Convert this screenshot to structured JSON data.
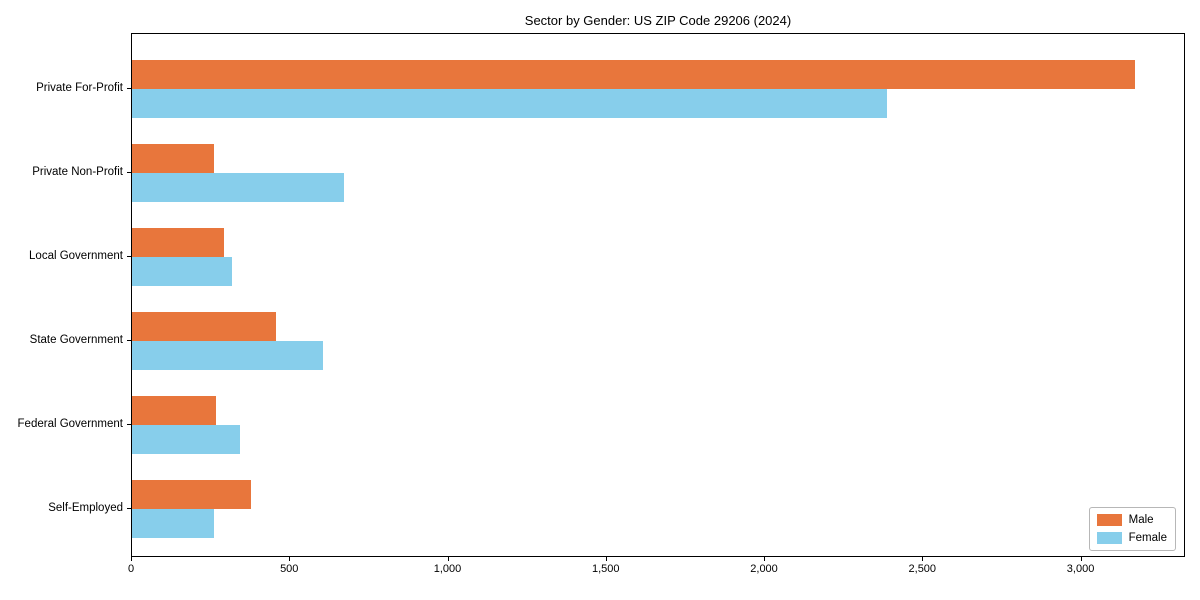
{
  "chart_data": {
    "type": "bar",
    "orientation": "horizontal",
    "title": "Sector by Gender: US ZIP Code 29206 (2024)",
    "categories": [
      "Private For-Profit",
      "Private Non-Profit",
      "Local Government",
      "State Government",
      "Federal Government",
      "Self-Employed"
    ],
    "series": [
      {
        "name": "Male",
        "color": "#e8763c",
        "values": [
          3170,
          260,
          290,
          455,
          265,
          375
        ]
      },
      {
        "name": "Female",
        "color": "#87ceeb",
        "values": [
          2385,
          670,
          315,
          605,
          340,
          260
        ]
      }
    ],
    "xlabel": "",
    "ylabel": "",
    "xlim": [
      0,
      3330
    ],
    "x_ticks": [
      0,
      500,
      1000,
      1500,
      2000,
      2500,
      3000
    ],
    "x_tick_labels": [
      "0",
      "500",
      "1,000",
      "1,500",
      "2,000",
      "2,500",
      "3,000"
    ],
    "grid": false,
    "legend_position": "lower right",
    "background_color": "#ffffff",
    "spine_color": "#000000"
  }
}
